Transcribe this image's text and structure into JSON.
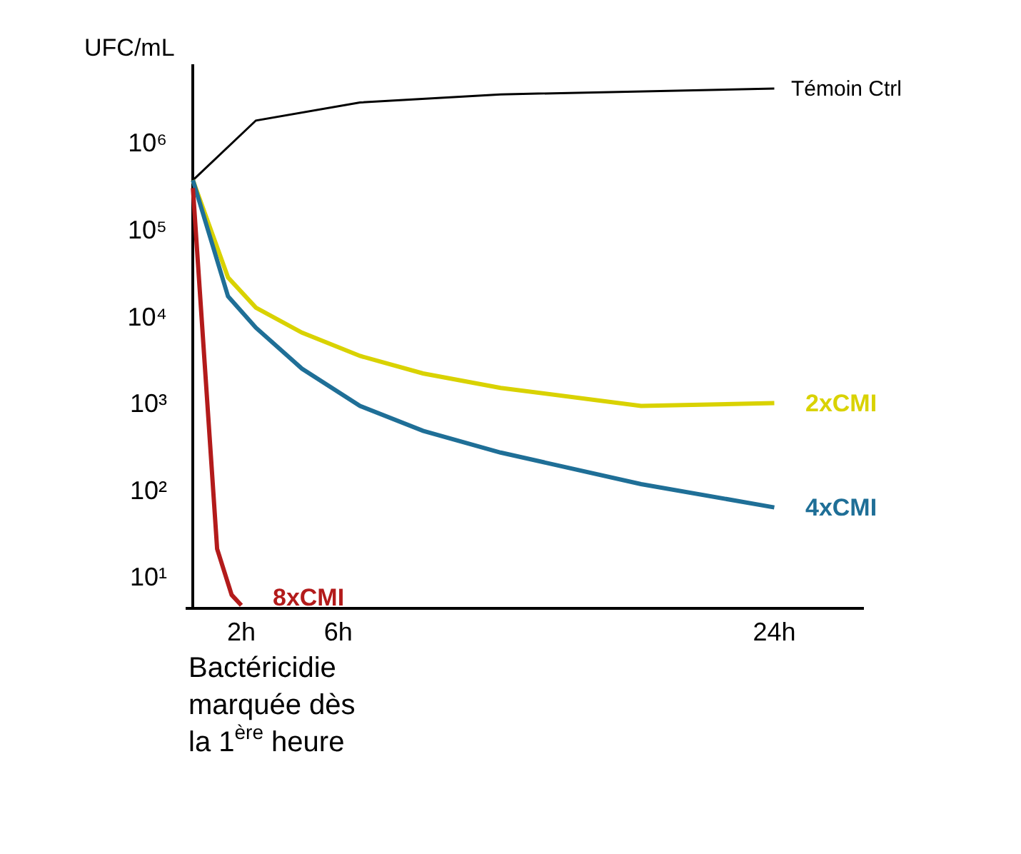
{
  "chart_data": {
    "type": "line",
    "ylabel": "UFC/mL",
    "log": "y",
    "legend": false,
    "marker": "none",
    "line_style": "solid",
    "xlim": [
      -0.3,
      27.7
    ],
    "xticks": [
      {
        "value": 2,
        "label": "2h"
      },
      {
        "value": 6,
        "label": "6h"
      },
      {
        "value": 24,
        "label": "24h"
      }
    ],
    "ylim": [
      4.5,
      8000000
    ],
    "yticks": [
      {
        "value": 10,
        "label": "10¹"
      },
      {
        "value": 100,
        "label": "10²"
      },
      {
        "value": 1000,
        "label": "10³"
      },
      {
        "value": 10000,
        "label": "10⁴"
      },
      {
        "value": 100000,
        "label": "10⁵"
      },
      {
        "value": 1000000,
        "label": "10⁶"
      }
    ],
    "series": [
      {
        "name": "Témoin Ctrl",
        "color": "#000000",
        "x": [
          0,
          2.6,
          6.9,
          12.7,
          24
        ],
        "values": [
          370000,
          1800000,
          2900000,
          3600000,
          4200000
        ]
      },
      {
        "name": "2xCMI",
        "color": "#d9d200",
        "x": [
          0,
          1.45,
          2.6,
          4.5,
          6.9,
          9.5,
          12.7,
          18.5,
          24
        ],
        "values": [
          370000,
          28000,
          12600,
          6500,
          3500,
          2200,
          1500,
          930,
          1000
        ]
      },
      {
        "name": "4xCMI",
        "color": "#1f6f97",
        "x": [
          0,
          1.45,
          2.6,
          4.5,
          6.9,
          9.5,
          12.7,
          18.5,
          24
        ],
        "values": [
          370000,
          17000,
          7400,
          2500,
          930,
          480,
          270,
          117,
          63
        ]
      },
      {
        "name": "8xCMI",
        "color": "#b31b1b",
        "x": [
          0,
          1.0,
          1.6,
          2
        ],
        "values": [
          300000,
          21,
          6.2,
          4.7
        ]
      }
    ],
    "annotations": [
      "Bactéricidie\nmarquée dès\nla 1$^{ère}$ heure"
    ]
  }
}
